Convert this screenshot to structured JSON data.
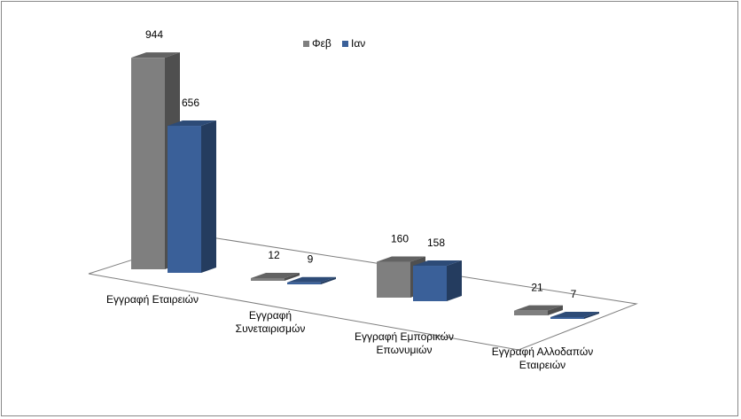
{
  "chart_data": {
    "type": "bar",
    "subtype": "3d-clustered-column",
    "title": "",
    "xlabel": "",
    "ylabel": "",
    "categories": [
      [
        "Εγγραφή  Εταιρειών"
      ],
      [
        "Εγγραφή",
        "Συνεταιρισμών"
      ],
      [
        "Εγγραφή  Εμπορικών",
        "Επωνυμιών"
      ],
      [
        "Εγγραφή  Αλλοδαπών",
        "Εταιρειών"
      ]
    ],
    "series": [
      {
        "name": "Φεβ",
        "values": [
          944,
          12,
          160,
          21
        ],
        "color": "#7f7f7f"
      },
      {
        "name": "Ιαν",
        "values": [
          656,
          9,
          158,
          7
        ],
        "color": "#3a6099"
      }
    ],
    "ylim": [
      0,
      1000
    ],
    "grid": false,
    "legend": "top-center"
  }
}
